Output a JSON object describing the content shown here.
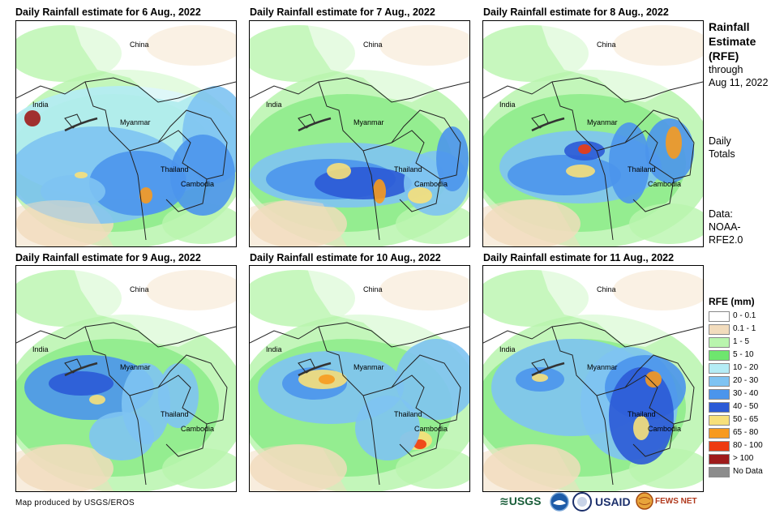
{
  "panels": [
    {
      "title": "Daily Rainfall estimate for 6 Aug., 2022"
    },
    {
      "title": "Daily Rainfall estimate for 7 Aug., 2022"
    },
    {
      "title": "Daily Rainfall estimate for 8 Aug., 2022"
    },
    {
      "title": "Daily Rainfall estimate for 9 Aug., 2022"
    },
    {
      "title": "Daily Rainfall estimate for 10 Aug., 2022"
    },
    {
      "title": "Daily Rainfall estimate for 11 Aug., 2022"
    }
  ],
  "map_labels": {
    "china": "China",
    "india": "India",
    "myanmar": "Myanmar",
    "thailand": "Thailand",
    "cambodia": "Cambodia"
  },
  "sidebar": {
    "title_1": "Rainfall",
    "title_2": "Estimate",
    "title_3": "(RFE)",
    "through_1": "through",
    "through_2": "Aug 11, 2022",
    "daily_1": "Daily",
    "daily_2": "Totals",
    "data_1": "Data:",
    "data_2": "NOAA-",
    "data_3": "RFE2.0"
  },
  "legend": {
    "title": "RFE (mm)",
    "items": [
      {
        "label": "0 - 0.1",
        "color": "#ffffff"
      },
      {
        "label": "0.1 - 1",
        "color": "#f2dcbd"
      },
      {
        "label": "1 - 5",
        "color": "#b9f5ae"
      },
      {
        "label": "5 - 10",
        "color": "#6ee66e"
      },
      {
        "label": "10 - 20",
        "color": "#b4ecf5"
      },
      {
        "label": "20 - 30",
        "color": "#7ec3f2"
      },
      {
        "label": "30 - 40",
        "color": "#4b95ec"
      },
      {
        "label": "40 - 50",
        "color": "#2b5ad6"
      },
      {
        "label": "50 - 65",
        "color": "#f7e07a"
      },
      {
        "label": "65 - 80",
        "color": "#f79a1f"
      },
      {
        "label": "80 - 100",
        "color": "#ee3b10"
      },
      {
        "label": "> 100",
        "color": "#9e1b1b"
      },
      {
        "label": "No Data",
        "color": "#8c8c8c"
      }
    ]
  },
  "credit": "Map produced by USGS/EROS",
  "logos": {
    "usgs": "≋USGS",
    "usaid": "USAID",
    "fewsnet": "FEWS NET"
  }
}
